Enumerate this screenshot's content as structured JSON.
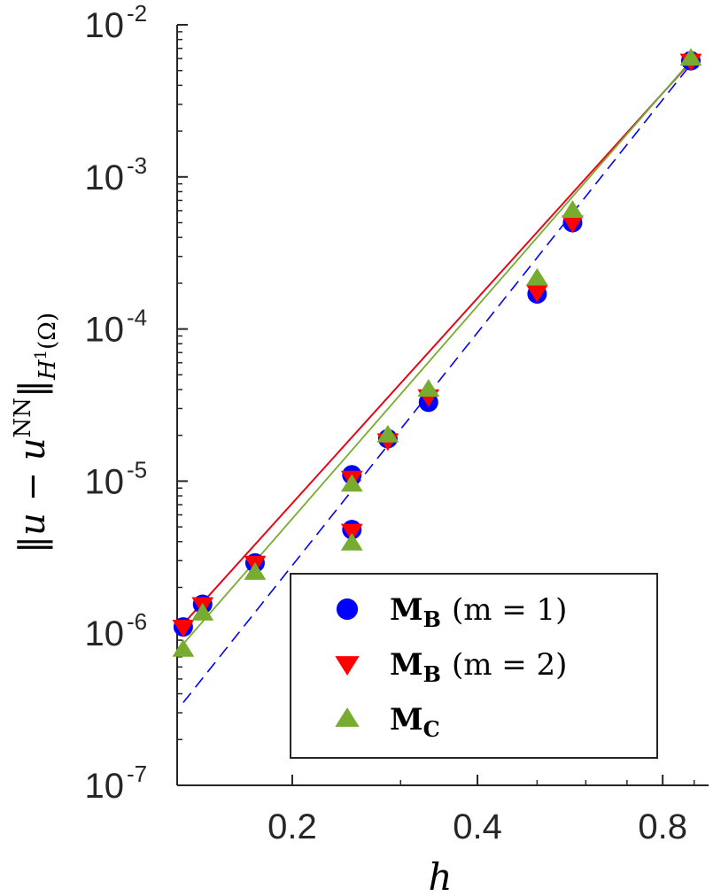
{
  "chart_data": {
    "type": "scatter",
    "xscale": "log",
    "yscale": "log",
    "xlim": [
      0.13,
      0.95
    ],
    "ylim": [
      1e-07,
      0.01
    ],
    "xlabel": "h",
    "ylabel": "||u − u^{NN}||_{H^1(Ω)}",
    "x_ticks": [
      {
        "value": 0.2,
        "label": "0.2"
      },
      {
        "value": 0.4,
        "label": "0.4"
      },
      {
        "value": 0.8,
        "label": "0.8"
      }
    ],
    "y_ticks": [
      {
        "value": 1e-07,
        "base": "10",
        "exp": "-7"
      },
      {
        "value": 1e-06,
        "base": "10",
        "exp": "-6"
      },
      {
        "value": 1e-05,
        "base": "10",
        "exp": "-5"
      },
      {
        "value": 0.0001,
        "base": "10",
        "exp": "-4"
      },
      {
        "value": 0.001,
        "base": "10",
        "exp": "-3"
      },
      {
        "value": 0.01,
        "base": "10",
        "exp": "-2"
      }
    ],
    "series": [
      {
        "name": "M_B (m = 1)",
        "marker": "circle",
        "color": "#0000ff",
        "points": [
          {
            "x": 0.133,
            "y": 1.1e-06
          },
          {
            "x": 0.143,
            "y": 1.55e-06
          },
          {
            "x": 0.174,
            "y": 2.9e-06
          },
          {
            "x": 0.25,
            "y": 1.1e-05
          },
          {
            "x": 0.25,
            "y": 4.8e-06
          },
          {
            "x": 0.286,
            "y": 1.9e-05
          },
          {
            "x": 0.333,
            "y": 3.3e-05
          },
          {
            "x": 0.5,
            "y": 0.00017
          },
          {
            "x": 0.571,
            "y": 0.0005
          },
          {
            "x": 0.889,
            "y": 0.0058
          }
        ],
        "fit": [
          {
            "x": 0.133,
            "y": 1.15e-06
          },
          {
            "x": 0.889,
            "y": 0.0057
          }
        ]
      },
      {
        "name": "M_B (m = 2)",
        "marker": "triangle-down",
        "color": "#ff0000",
        "points": [
          {
            "x": 0.133,
            "y": 1.1e-06
          },
          {
            "x": 0.143,
            "y": 1.55e-06
          },
          {
            "x": 0.174,
            "y": 2.9e-06
          },
          {
            "x": 0.25,
            "y": 1.05e-05
          },
          {
            "x": 0.25,
            "y": 4.7e-06
          },
          {
            "x": 0.286,
            "y": 1.85e-05
          },
          {
            "x": 0.333,
            "y": 3.6e-05
          },
          {
            "x": 0.5,
            "y": 0.000175
          },
          {
            "x": 0.571,
            "y": 0.0005
          },
          {
            "x": 0.889,
            "y": 0.0058
          }
        ],
        "fit": [
          {
            "x": 0.133,
            "y": 1.15e-06
          },
          {
            "x": 0.889,
            "y": 0.0057
          }
        ]
      },
      {
        "name": "M_C",
        "marker": "triangle-up",
        "color": "#77ac30",
        "points": [
          {
            "x": 0.133,
            "y": 7.8e-07
          },
          {
            "x": 0.143,
            "y": 1.35e-06
          },
          {
            "x": 0.174,
            "y": 2.5e-06
          },
          {
            "x": 0.25,
            "y": 9.5e-06
          },
          {
            "x": 0.25,
            "y": 3.9e-06
          },
          {
            "x": 0.286,
            "y": 2e-05
          },
          {
            "x": 0.333,
            "y": 4e-05
          },
          {
            "x": 0.5,
            "y": 0.000215
          },
          {
            "x": 0.571,
            "y": 0.0006
          },
          {
            "x": 0.889,
            "y": 0.006
          }
        ],
        "fit": [
          {
            "x": 0.133,
            "y": 8.5e-07
          },
          {
            "x": 0.889,
            "y": 0.0058
          }
        ]
      }
    ],
    "reference_line": {
      "style": "dashed",
      "color": "#0000ff",
      "points": [
        {
          "x": 0.133,
          "y": 3.5e-07
        },
        {
          "x": 0.889,
          "y": 0.0055
        }
      ]
    },
    "legend": {
      "placement": "bottom-right",
      "entries": [
        {
          "series": 0,
          "main": "M",
          "sub": "B",
          "suffix": "(m = 1)"
        },
        {
          "series": 1,
          "main": "M",
          "sub": "B",
          "suffix": "(m = 2)"
        },
        {
          "series": 2,
          "main": "M",
          "sub": "C",
          "suffix": ""
        }
      ]
    }
  }
}
